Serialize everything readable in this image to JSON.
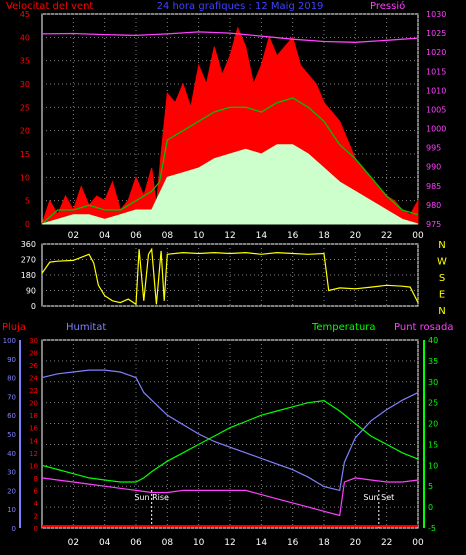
{
  "title": "24 hora grafiques : 12 Maig 2019",
  "colors": {
    "background": "#000000",
    "frame": "#ffffff",
    "grid": "#808080",
    "wind_speed": "#ff0000",
    "wind_avg": "#00c000",
    "wind_gust_low": "#ccffcc",
    "pressure": "#ff40ff",
    "direction": "#ffff00",
    "rain": "#ff0000",
    "humidity": "#8080ff",
    "temperature": "#00ff00",
    "dewpoint": "#ff40ff",
    "sun_marker": "#ffffff",
    "title": "#4040ff"
  },
  "chart_data": [
    {
      "id": "wind",
      "type": "line",
      "left_axis_label": "Velocitat del vent",
      "right_axis_label": "Pressió",
      "x_ticks": [
        "02",
        "04",
        "06",
        "08",
        "10",
        "12",
        "14",
        "16",
        "18",
        "20",
        "22",
        "00"
      ],
      "x_range_hours": [
        0,
        24
      ],
      "y_left_ticks": [
        0,
        5,
        10,
        15,
        20,
        25,
        30,
        35,
        40,
        45
      ],
      "y_left_range": [
        0,
        45
      ],
      "y_right_ticks": [
        975,
        980,
        985,
        990,
        995,
        1000,
        1005,
        1010,
        1015,
        1020,
        1025,
        1030
      ],
      "y_right_range": [
        975,
        1030
      ],
      "series": [
        {
          "key": "gust",
          "points": [
            [
              0,
              0
            ],
            [
              0.5,
              5
            ],
            [
              1,
              2
            ],
            [
              1.5,
              6
            ],
            [
              2,
              3
            ],
            [
              2.5,
              8
            ],
            [
              3,
              4
            ],
            [
              3.5,
              6
            ],
            [
              4,
              5
            ],
            [
              4.5,
              9
            ],
            [
              5,
              3
            ],
            [
              5.5,
              5
            ],
            [
              6,
              10
            ],
            [
              6.5,
              6
            ],
            [
              7,
              12
            ],
            [
              7.3,
              4
            ],
            [
              7.6,
              15
            ],
            [
              8,
              28
            ],
            [
              8.5,
              26
            ],
            [
              9,
              30
            ],
            [
              9.5,
              25
            ],
            [
              10,
              34
            ],
            [
              10.5,
              30
            ],
            [
              11,
              38
            ],
            [
              11.5,
              32
            ],
            [
              12,
              36
            ],
            [
              12.5,
              42
            ],
            [
              13,
              38
            ],
            [
              13.5,
              30
            ],
            [
              14,
              34
            ],
            [
              14.5,
              40
            ],
            [
              15,
              36
            ],
            [
              15.5,
              38
            ],
            [
              16,
              40
            ],
            [
              16.5,
              34
            ],
            [
              17,
              32
            ],
            [
              17.5,
              30
            ],
            [
              18,
              26
            ],
            [
              18.5,
              24
            ],
            [
              19,
              22
            ],
            [
              19.5,
              18
            ],
            [
              20,
              14
            ],
            [
              20.5,
              12
            ],
            [
              21,
              10
            ],
            [
              21.5,
              8
            ],
            [
              22,
              6
            ],
            [
              22.5,
              5
            ],
            [
              23,
              3
            ],
            [
              23.5,
              2
            ],
            [
              24,
              5
            ]
          ]
        },
        {
          "key": "average",
          "points": [
            [
              0,
              0
            ],
            [
              1,
              3
            ],
            [
              2,
              3
            ],
            [
              3,
              4
            ],
            [
              4,
              3
            ],
            [
              5,
              3
            ],
            [
              6,
              5
            ],
            [
              7,
              7
            ],
            [
              7.5,
              9
            ],
            [
              8,
              18
            ],
            [
              9,
              20
            ],
            [
              10,
              22
            ],
            [
              11,
              24
            ],
            [
              12,
              25
            ],
            [
              13,
              25
            ],
            [
              14,
              24
            ],
            [
              15,
              26
            ],
            [
              16,
              27
            ],
            [
              17,
              25
            ],
            [
              18,
              22
            ],
            [
              19,
              17
            ],
            [
              20,
              14
            ],
            [
              21,
              10
            ],
            [
              22,
              6
            ],
            [
              23,
              3
            ],
            [
              24,
              2
            ]
          ]
        },
        {
          "key": "low",
          "points": [
            [
              0,
              0
            ],
            [
              1,
              1
            ],
            [
              2,
              2
            ],
            [
              3,
              2
            ],
            [
              4,
              1
            ],
            [
              5,
              2
            ],
            [
              6,
              3
            ],
            [
              7,
              3
            ],
            [
              8,
              10
            ],
            [
              9,
              11
            ],
            [
              10,
              12
            ],
            [
              11,
              14
            ],
            [
              12,
              15
            ],
            [
              13,
              16
            ],
            [
              14,
              15
            ],
            [
              15,
              17
            ],
            [
              16,
              17
            ],
            [
              17,
              15
            ],
            [
              18,
              12
            ],
            [
              19,
              9
            ],
            [
              20,
              7
            ],
            [
              21,
              5
            ],
            [
              22,
              3
            ],
            [
              23,
              1
            ],
            [
              24,
              0
            ]
          ]
        },
        {
          "key": "pressure",
          "axis": "right",
          "points": [
            [
              0,
              1024.8
            ],
            [
              2,
              1024.9
            ],
            [
              4,
              1024.6
            ],
            [
              6,
              1024.4
            ],
            [
              8,
              1024.8
            ],
            [
              10,
              1025.3
            ],
            [
              12,
              1025.0
            ],
            [
              14,
              1024.2
            ],
            [
              16,
              1023.4
            ],
            [
              18,
              1022.8
            ],
            [
              20,
              1022.6
            ],
            [
              22,
              1023.1
            ],
            [
              24,
              1023.7
            ]
          ]
        }
      ]
    },
    {
      "id": "direction",
      "type": "line",
      "y_left_ticks": [
        0,
        90,
        180,
        270,
        360
      ],
      "y_left_range": [
        0,
        360
      ],
      "compass_labels": [
        "N",
        "W",
        "S",
        "E",
        "N"
      ],
      "series": [
        {
          "key": "direction",
          "points": [
            [
              0,
              190
            ],
            [
              0.5,
              255
            ],
            [
              1,
              260
            ],
            [
              2,
              265
            ],
            [
              3,
              300
            ],
            [
              3.3,
              250
            ],
            [
              3.6,
              120
            ],
            [
              4,
              60
            ],
            [
              4.5,
              30
            ],
            [
              5,
              20
            ],
            [
              5.5,
              40
            ],
            [
              6,
              10
            ],
            [
              6.2,
              330
            ],
            [
              6.5,
              30
            ],
            [
              6.8,
              300
            ],
            [
              7,
              330
            ],
            [
              7.3,
              10
            ],
            [
              7.6,
              320
            ],
            [
              7.8,
              30
            ],
            [
              8,
              300
            ],
            [
              9,
              310
            ],
            [
              10,
              305
            ],
            [
              11,
              310
            ],
            [
              12,
              305
            ],
            [
              13,
              310
            ],
            [
              14,
              300
            ],
            [
              15,
              310
            ],
            [
              16,
              305
            ],
            [
              17,
              300
            ],
            [
              18,
              305
            ],
            [
              18.3,
              90
            ],
            [
              19,
              105
            ],
            [
              20,
              100
            ],
            [
              21,
              110
            ],
            [
              22,
              120
            ],
            [
              23,
              115
            ],
            [
              23.5,
              110
            ],
            [
              24,
              20
            ]
          ]
        }
      ]
    },
    {
      "id": "temp_hum",
      "type": "line",
      "labels": [
        "Pluja",
        "Humitat",
        "Temperatura",
        "Punt rosada"
      ],
      "y_rain_ticks": [
        0,
        2,
        4,
        6,
        8,
        10,
        12,
        14,
        16,
        18,
        20,
        22,
        24,
        26,
        28,
        30
      ],
      "y_rain_range": [
        0,
        30
      ],
      "y_humidity_ticks": [
        0,
        10,
        20,
        30,
        40,
        50,
        60,
        70,
        80,
        90,
        100
      ],
      "y_humidity_range": [
        0,
        100
      ],
      "y_temp_ticks": [
        -5,
        0,
        5,
        10,
        15,
        20,
        25,
        30,
        35,
        40
      ],
      "y_temp_range": [
        -5,
        40
      ],
      "annotations": [
        {
          "label": "Sun Rise",
          "hour": 7
        },
        {
          "label": "Sun Set",
          "hour": 21.5
        }
      ],
      "series": [
        {
          "key": "humidity",
          "axis": "humidity",
          "points": [
            [
              0,
              80
            ],
            [
              1,
              82
            ],
            [
              2,
              83
            ],
            [
              3,
              84
            ],
            [
              4,
              84
            ],
            [
              5,
              83
            ],
            [
              6,
              80
            ],
            [
              6.5,
              72
            ],
            [
              7,
              68
            ],
            [
              8,
              60
            ],
            [
              9,
              55
            ],
            [
              10,
              50
            ],
            [
              11,
              46
            ],
            [
              12,
              43
            ],
            [
              13,
              40
            ],
            [
              14,
              37
            ],
            [
              15,
              34
            ],
            [
              16,
              31
            ],
            [
              17,
              27
            ],
            [
              18,
              22
            ],
            [
              19,
              20
            ],
            [
              19.3,
              35
            ],
            [
              20,
              48
            ],
            [
              21,
              57
            ],
            [
              22,
              63
            ],
            [
              23,
              68
            ],
            [
              24,
              72
            ]
          ]
        },
        {
          "key": "temperature",
          "axis": "temp",
          "points": [
            [
              0,
              10
            ],
            [
              1,
              9
            ],
            [
              2,
              8
            ],
            [
              3,
              7
            ],
            [
              4,
              6.5
            ],
            [
              5,
              6
            ],
            [
              6,
              6
            ],
            [
              6.5,
              7
            ],
            [
              7,
              8.5
            ],
            [
              8,
              11
            ],
            [
              9,
              13
            ],
            [
              10,
              15
            ],
            [
              11,
              17
            ],
            [
              12,
              19
            ],
            [
              13,
              20.5
            ],
            [
              14,
              22
            ],
            [
              15,
              23
            ],
            [
              16,
              24
            ],
            [
              17,
              25
            ],
            [
              18,
              25.5
            ],
            [
              19,
              23
            ],
            [
              20,
              20
            ],
            [
              21,
              17
            ],
            [
              22,
              15
            ],
            [
              23,
              13
            ],
            [
              24,
              11.5
            ]
          ]
        },
        {
          "key": "dewpoint",
          "axis": "temp",
          "points": [
            [
              0,
              7
            ],
            [
              1,
              6.5
            ],
            [
              2,
              6
            ],
            [
              3,
              5.5
            ],
            [
              4,
              5
            ],
            [
              5,
              4.5
            ],
            [
              6,
              4
            ],
            [
              7,
              3.5
            ],
            [
              8,
              3.5
            ],
            [
              9,
              4
            ],
            [
              10,
              4
            ],
            [
              11,
              4
            ],
            [
              12,
              4
            ],
            [
              13,
              4
            ],
            [
              14,
              3
            ],
            [
              15,
              2
            ],
            [
              16,
              1
            ],
            [
              17,
              0
            ],
            [
              18,
              -1
            ],
            [
              19,
              -2
            ],
            [
              19.3,
              6
            ],
            [
              20,
              7
            ],
            [
              21,
              6.5
            ],
            [
              22,
              6
            ],
            [
              23,
              6
            ],
            [
              24,
              6.5
            ]
          ]
        },
        {
          "key": "rain",
          "axis": "rain",
          "points": [
            [
              0,
              0.3
            ],
            [
              24,
              0.3
            ]
          ]
        }
      ]
    }
  ]
}
